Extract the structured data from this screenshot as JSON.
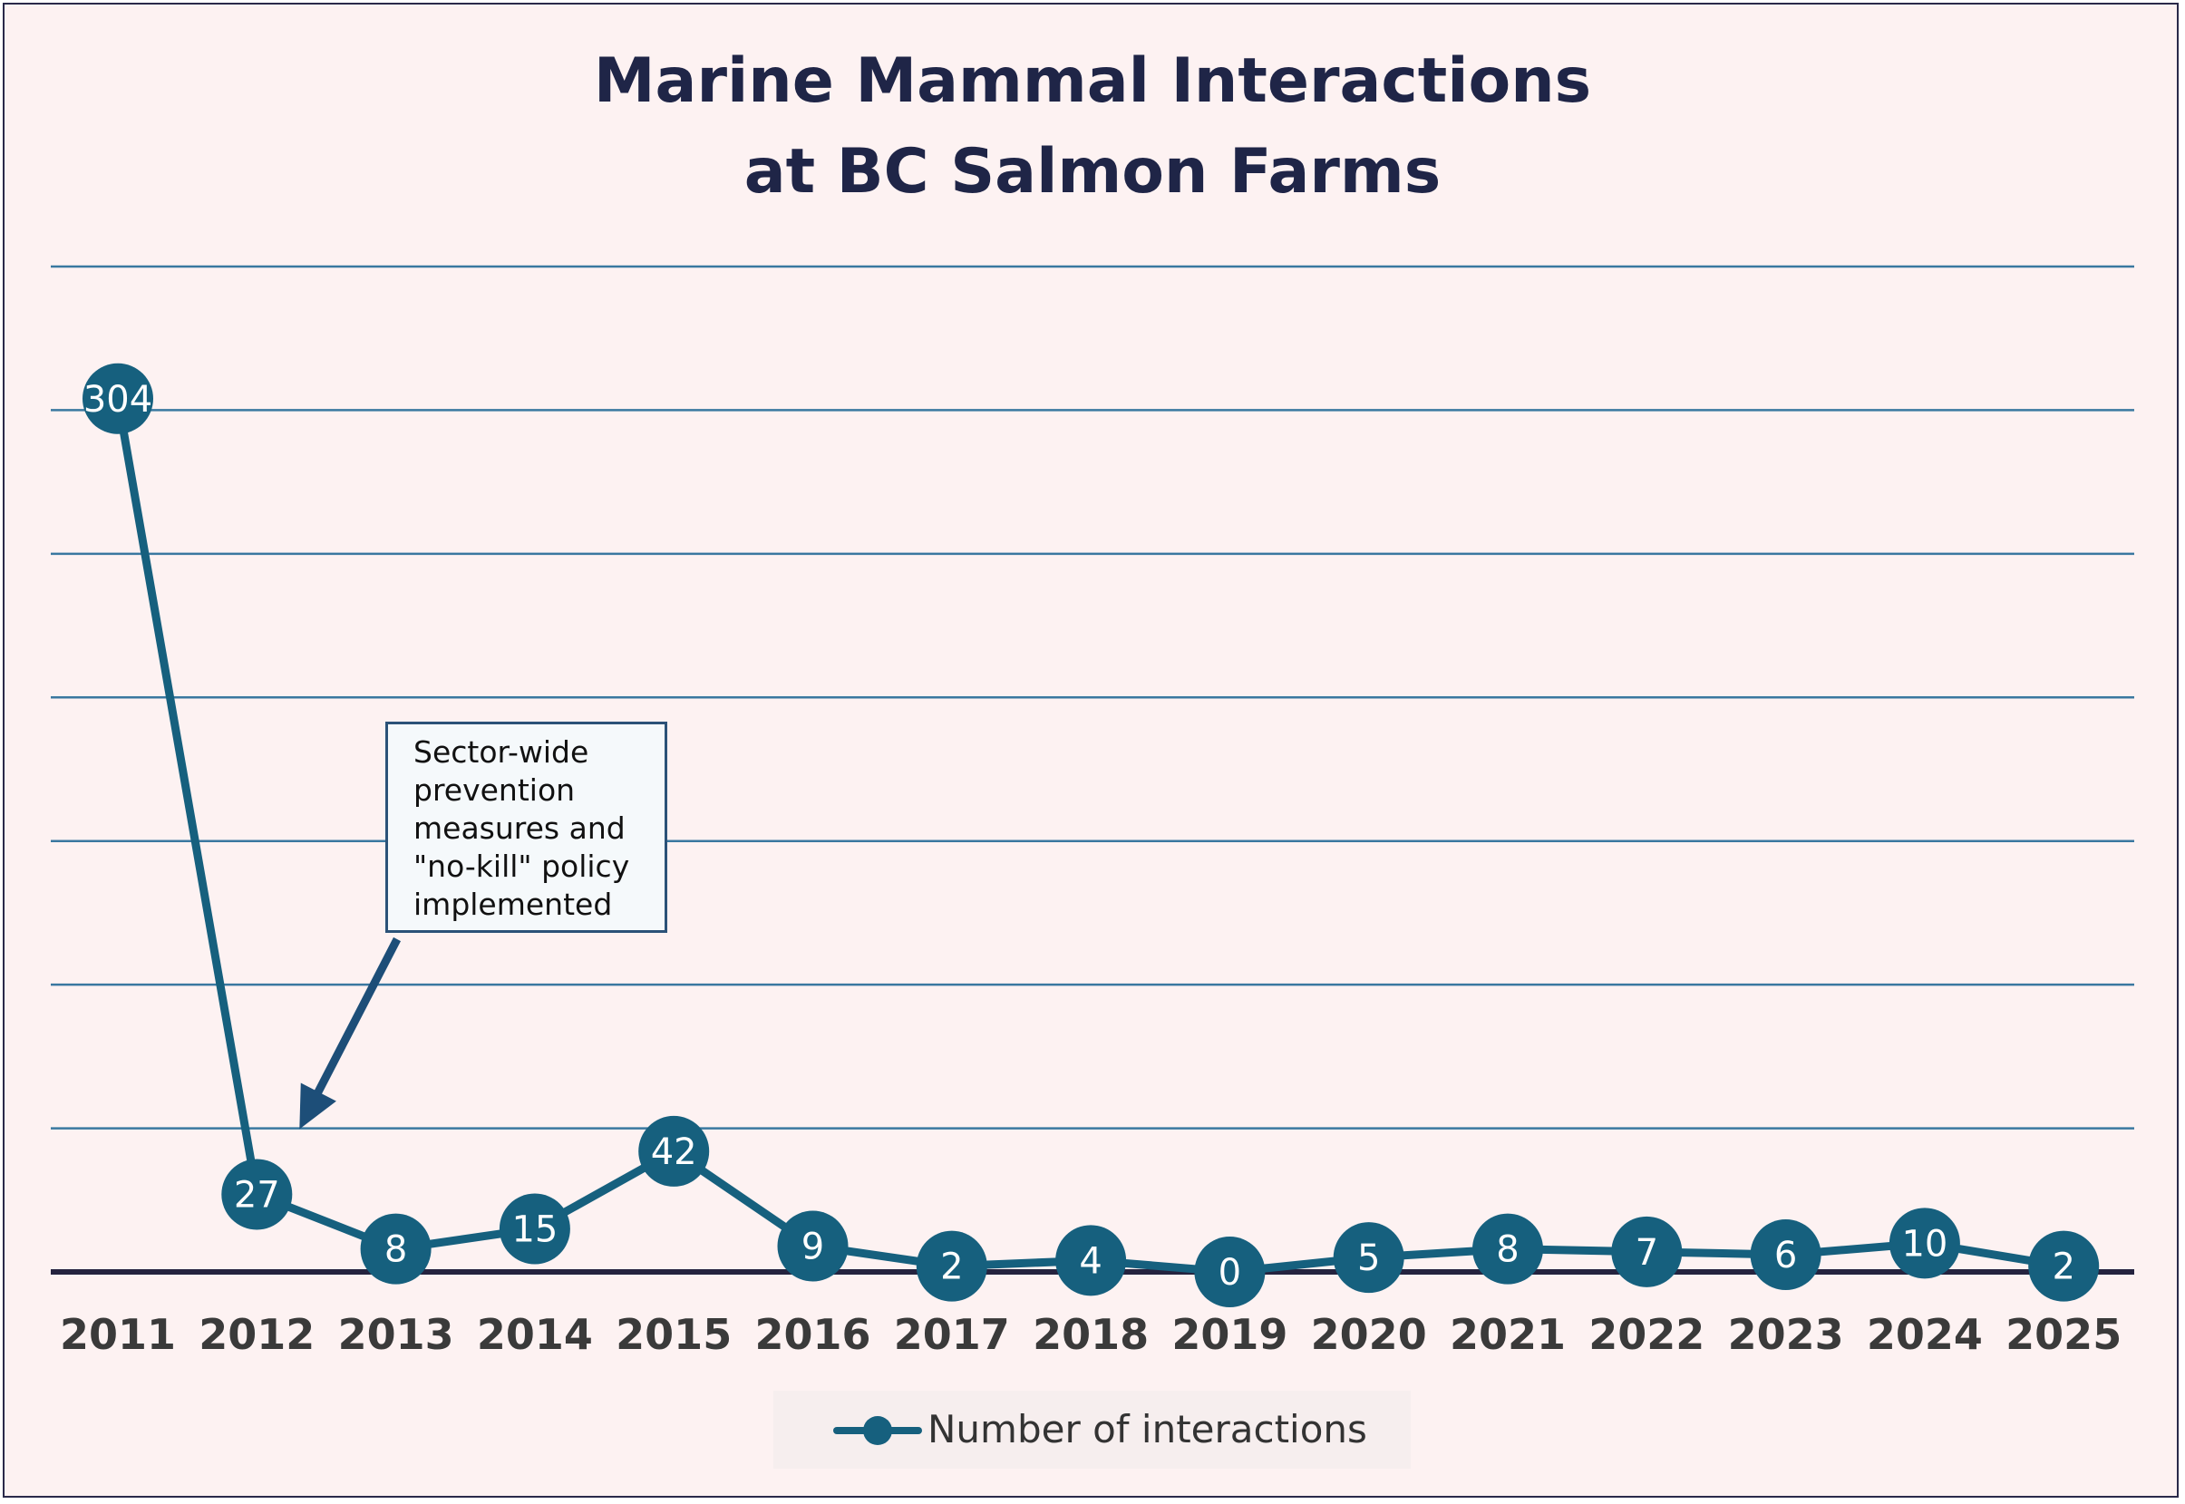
{
  "chart_data": {
    "type": "line",
    "title": "Marine Mammal Interactions\nat BC Salmon Farms",
    "title_lines": [
      "Marine Mammal Interactions",
      "at BC Salmon Farms"
    ],
    "x": [
      "2011",
      "2012",
      "2013",
      "2014",
      "2015",
      "2016",
      "2017",
      "2018",
      "2019",
      "2020",
      "2021",
      "2022",
      "2023",
      "2024",
      "2025"
    ],
    "series": [
      {
        "name": "Number of interactions",
        "values": [
          304,
          27,
          8,
          15,
          42,
          9,
          2,
          4,
          0,
          5,
          8,
          7,
          6,
          10,
          2
        ],
        "color": "#16607e"
      }
    ],
    "ylim": [
      0,
      350
    ],
    "grid": true,
    "legend": "bottom",
    "annotation": {
      "text_lines": [
        "Sector-wide",
        "prevention",
        "measures and",
        "\"no-kill\" policy",
        "implemented"
      ],
      "target_x": "2012"
    }
  },
  "colors": {
    "background": "#fdf2f2",
    "gridline": "#3a78a0",
    "series": "#16607e",
    "baseline": "#25233f",
    "title": "#1f2547",
    "tick_label": "#3a3a3a",
    "arrow": "#1d4e78"
  }
}
